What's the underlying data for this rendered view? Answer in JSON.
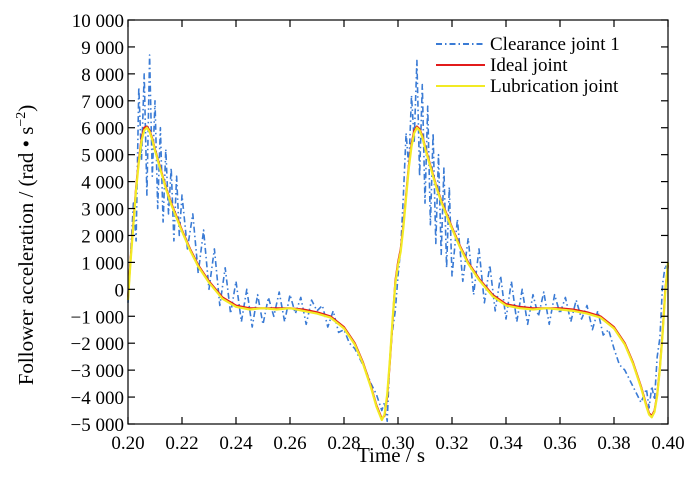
{
  "chart_data": {
    "type": "line",
    "xlabel": "Time / s",
    "ylabel_main": "Follower acceleration / (rad • s",
    "ylabel_exp": "−2",
    "ylabel_close": ")",
    "xlim": [
      0.2,
      0.4
    ],
    "ylim": [
      -5000,
      10000
    ],
    "x_ticks": [
      0.2,
      0.22,
      0.24,
      0.26,
      0.28,
      0.3,
      0.32,
      0.34,
      0.36,
      0.38,
      0.4
    ],
    "x_tick_labels": [
      "0.20",
      "0.22",
      "0.24",
      "0.26",
      "0.28",
      "0.30",
      "0.32",
      "0.34",
      "0.36",
      "0.38",
      "0.40"
    ],
    "y_ticks": [
      -5000,
      -4000,
      -3000,
      -2000,
      -1000,
      0,
      1000,
      2000,
      3000,
      4000,
      5000,
      6000,
      7000,
      8000,
      9000,
      10000
    ],
    "y_tick_labels": [
      "−5 000",
      "−4 000",
      "−3 000",
      "−2 000",
      "−1 000",
      "0",
      "1 000",
      "2 000",
      "3 000",
      "4 000",
      "5 000",
      "6 000",
      "7 000",
      "8 000",
      "9 000",
      "10 000"
    ],
    "legend_position": "top-right",
    "series": [
      {
        "name": "Clearance joint 1",
        "color": "#3a7bd5",
        "style": "dashdot",
        "x": [
          0.2,
          0.202,
          0.203,
          0.204,
          0.205,
          0.206,
          0.207,
          0.208,
          0.209,
          0.21,
          0.211,
          0.212,
          0.213,
          0.214,
          0.215,
          0.216,
          0.217,
          0.218,
          0.219,
          0.22,
          0.222,
          0.224,
          0.226,
          0.228,
          0.23,
          0.232,
          0.234,
          0.236,
          0.238,
          0.24,
          0.242,
          0.244,
          0.246,
          0.248,
          0.25,
          0.252,
          0.254,
          0.256,
          0.258,
          0.26,
          0.262,
          0.264,
          0.266,
          0.268,
          0.27,
          0.272,
          0.274,
          0.276,
          0.278,
          0.28,
          0.282,
          0.284,
          0.286,
          0.288,
          0.29,
          0.292,
          0.294,
          0.295,
          0.296,
          0.297,
          0.298,
          0.299,
          0.3,
          0.301,
          0.302,
          0.303,
          0.304,
          0.305,
          0.306,
          0.307,
          0.308,
          0.309,
          0.31,
          0.311,
          0.312,
          0.313,
          0.314,
          0.315,
          0.316,
          0.317,
          0.318,
          0.319,
          0.32,
          0.322,
          0.324,
          0.326,
          0.328,
          0.33,
          0.332,
          0.334,
          0.336,
          0.338,
          0.34,
          0.342,
          0.344,
          0.346,
          0.348,
          0.35,
          0.352,
          0.354,
          0.356,
          0.358,
          0.36,
          0.362,
          0.364,
          0.366,
          0.368,
          0.37,
          0.372,
          0.374,
          0.376,
          0.378,
          0.38,
          0.382,
          0.384,
          0.386,
          0.388,
          0.39,
          0.392,
          0.393,
          0.394,
          0.395,
          0.396,
          0.397,
          0.398,
          0.399,
          0.4
        ],
        "y": [
          -500,
          3200,
          1800,
          7500,
          4800,
          8000,
          3500,
          8700,
          4200,
          7000,
          3000,
          6000,
          2500,
          5200,
          2800,
          4500,
          1800,
          4200,
          2000,
          3500,
          1500,
          2800,
          600,
          2200,
          0,
          1500,
          -600,
          800,
          -900,
          300,
          -1200,
          0,
          -1400,
          -200,
          -1300,
          -300,
          -1000,
          -100,
          -1200,
          -200,
          -900,
          -300,
          -1300,
          -400,
          -800,
          -600,
          -1400,
          -800,
          -1600,
          -1500,
          -2000,
          -2200,
          -2600,
          -3000,
          -3500,
          -3900,
          -4500,
          -4200,
          -4900,
          -2500,
          -1500,
          -800,
          500,
          1500,
          3500,
          5800,
          4500,
          7200,
          5500,
          8500,
          4200,
          7600,
          3200,
          6800,
          2400,
          5800,
          1700,
          5000,
          1300,
          4500,
          800,
          3800,
          500,
          2600,
          300,
          1900,
          -200,
          1500,
          -500,
          900,
          -800,
          500,
          -1100,
          300,
          -1200,
          0,
          -1300,
          -200,
          -1000,
          -100,
          -1300,
          -200,
          -900,
          -300,
          -1200,
          -400,
          -1100,
          -600,
          -1500,
          -800,
          -1700,
          -1500,
          -2200,
          -2800,
          -3000,
          -3400,
          -3800,
          -4200,
          -3700,
          -4400,
          -3600,
          -4100,
          -2500,
          -1800,
          200,
          900,
          700
        ]
      },
      {
        "name": "Ideal joint",
        "color": "#e21b1b",
        "style": "solid",
        "x": [
          0.2,
          0.201,
          0.202,
          0.203,
          0.204,
          0.205,
          0.206,
          0.207,
          0.208,
          0.209,
          0.21,
          0.212,
          0.214,
          0.216,
          0.218,
          0.22,
          0.223,
          0.226,
          0.23,
          0.235,
          0.24,
          0.245,
          0.25,
          0.255,
          0.26,
          0.265,
          0.27,
          0.275,
          0.28,
          0.284,
          0.287,
          0.29,
          0.292,
          0.294,
          0.295,
          0.296,
          0.297,
          0.298,
          0.299,
          0.3,
          0.301,
          0.302,
          0.303,
          0.304,
          0.305,
          0.306,
          0.307,
          0.308,
          0.309,
          0.31,
          0.312,
          0.314,
          0.316,
          0.318,
          0.32,
          0.323,
          0.326,
          0.33,
          0.335,
          0.34,
          0.345,
          0.35,
          0.355,
          0.36,
          0.365,
          0.37,
          0.375,
          0.38,
          0.384,
          0.387,
          0.39,
          0.392,
          0.393,
          0.394,
          0.395,
          0.396,
          0.397,
          0.398,
          0.399,
          0.4
        ],
        "y": [
          -300,
          1200,
          2500,
          3800,
          4800,
          5600,
          6000,
          6050,
          5900,
          5600,
          5200,
          4500,
          3800,
          3200,
          2700,
          2200,
          1500,
          900,
          300,
          -300,
          -600,
          -700,
          -700,
          -700,
          -700,
          -750,
          -850,
          -1000,
          -1400,
          -2000,
          -2700,
          -3600,
          -4300,
          -4800,
          -4700,
          -4000,
          -2700,
          -1200,
          300,
          1000,
          1500,
          2400,
          3500,
          4600,
          5400,
          5900,
          6050,
          5950,
          5700,
          5300,
          4600,
          3900,
          3300,
          2800,
          2300,
          1600,
          1000,
          400,
          -200,
          -550,
          -650,
          -700,
          -700,
          -700,
          -750,
          -850,
          -1000,
          -1400,
          -2000,
          -2700,
          -3600,
          -4300,
          -4600,
          -4700,
          -4500,
          -3900,
          -2900,
          -1600,
          0,
          900
        ]
      },
      {
        "name": "Lubrication joint",
        "color": "#f2ea24",
        "style": "solid",
        "x": [
          0.2,
          0.201,
          0.202,
          0.203,
          0.204,
          0.205,
          0.206,
          0.207,
          0.208,
          0.209,
          0.21,
          0.212,
          0.214,
          0.216,
          0.218,
          0.22,
          0.223,
          0.226,
          0.23,
          0.235,
          0.24,
          0.245,
          0.25,
          0.255,
          0.26,
          0.265,
          0.27,
          0.275,
          0.28,
          0.284,
          0.287,
          0.29,
          0.292,
          0.294,
          0.295,
          0.296,
          0.297,
          0.298,
          0.299,
          0.3,
          0.301,
          0.302,
          0.303,
          0.304,
          0.305,
          0.306,
          0.307,
          0.308,
          0.309,
          0.31,
          0.312,
          0.314,
          0.316,
          0.318,
          0.32,
          0.323,
          0.326,
          0.33,
          0.335,
          0.34,
          0.345,
          0.35,
          0.355,
          0.36,
          0.365,
          0.37,
          0.375,
          0.38,
          0.384,
          0.387,
          0.39,
          0.392,
          0.393,
          0.394,
          0.395,
          0.396,
          0.397,
          0.398,
          0.399,
          0.4
        ],
        "y": [
          -400,
          1100,
          2400,
          3700,
          4700,
          5500,
          5900,
          6000,
          5850,
          5550,
          5150,
          4450,
          3750,
          3150,
          2650,
          2150,
          1450,
          850,
          250,
          -350,
          -650,
          -750,
          -700,
          -750,
          -700,
          -800,
          -900,
          -1050,
          -1450,
          -2050,
          -2750,
          -3650,
          -4350,
          -4850,
          -4650,
          -3900,
          -2600,
          -1100,
          200,
          900,
          1400,
          2300,
          3400,
          4500,
          5300,
          5800,
          6000,
          5900,
          5650,
          5250,
          4550,
          3850,
          3250,
          2750,
          2250,
          1550,
          950,
          350,
          -250,
          -600,
          -700,
          -750,
          -700,
          -750,
          -800,
          -900,
          -1050,
          -1450,
          -2050,
          -2750,
          -3650,
          -4350,
          -4650,
          -4750,
          -4550,
          -3950,
          -2950,
          -1650,
          -100,
          1000
        ]
      }
    ]
  }
}
